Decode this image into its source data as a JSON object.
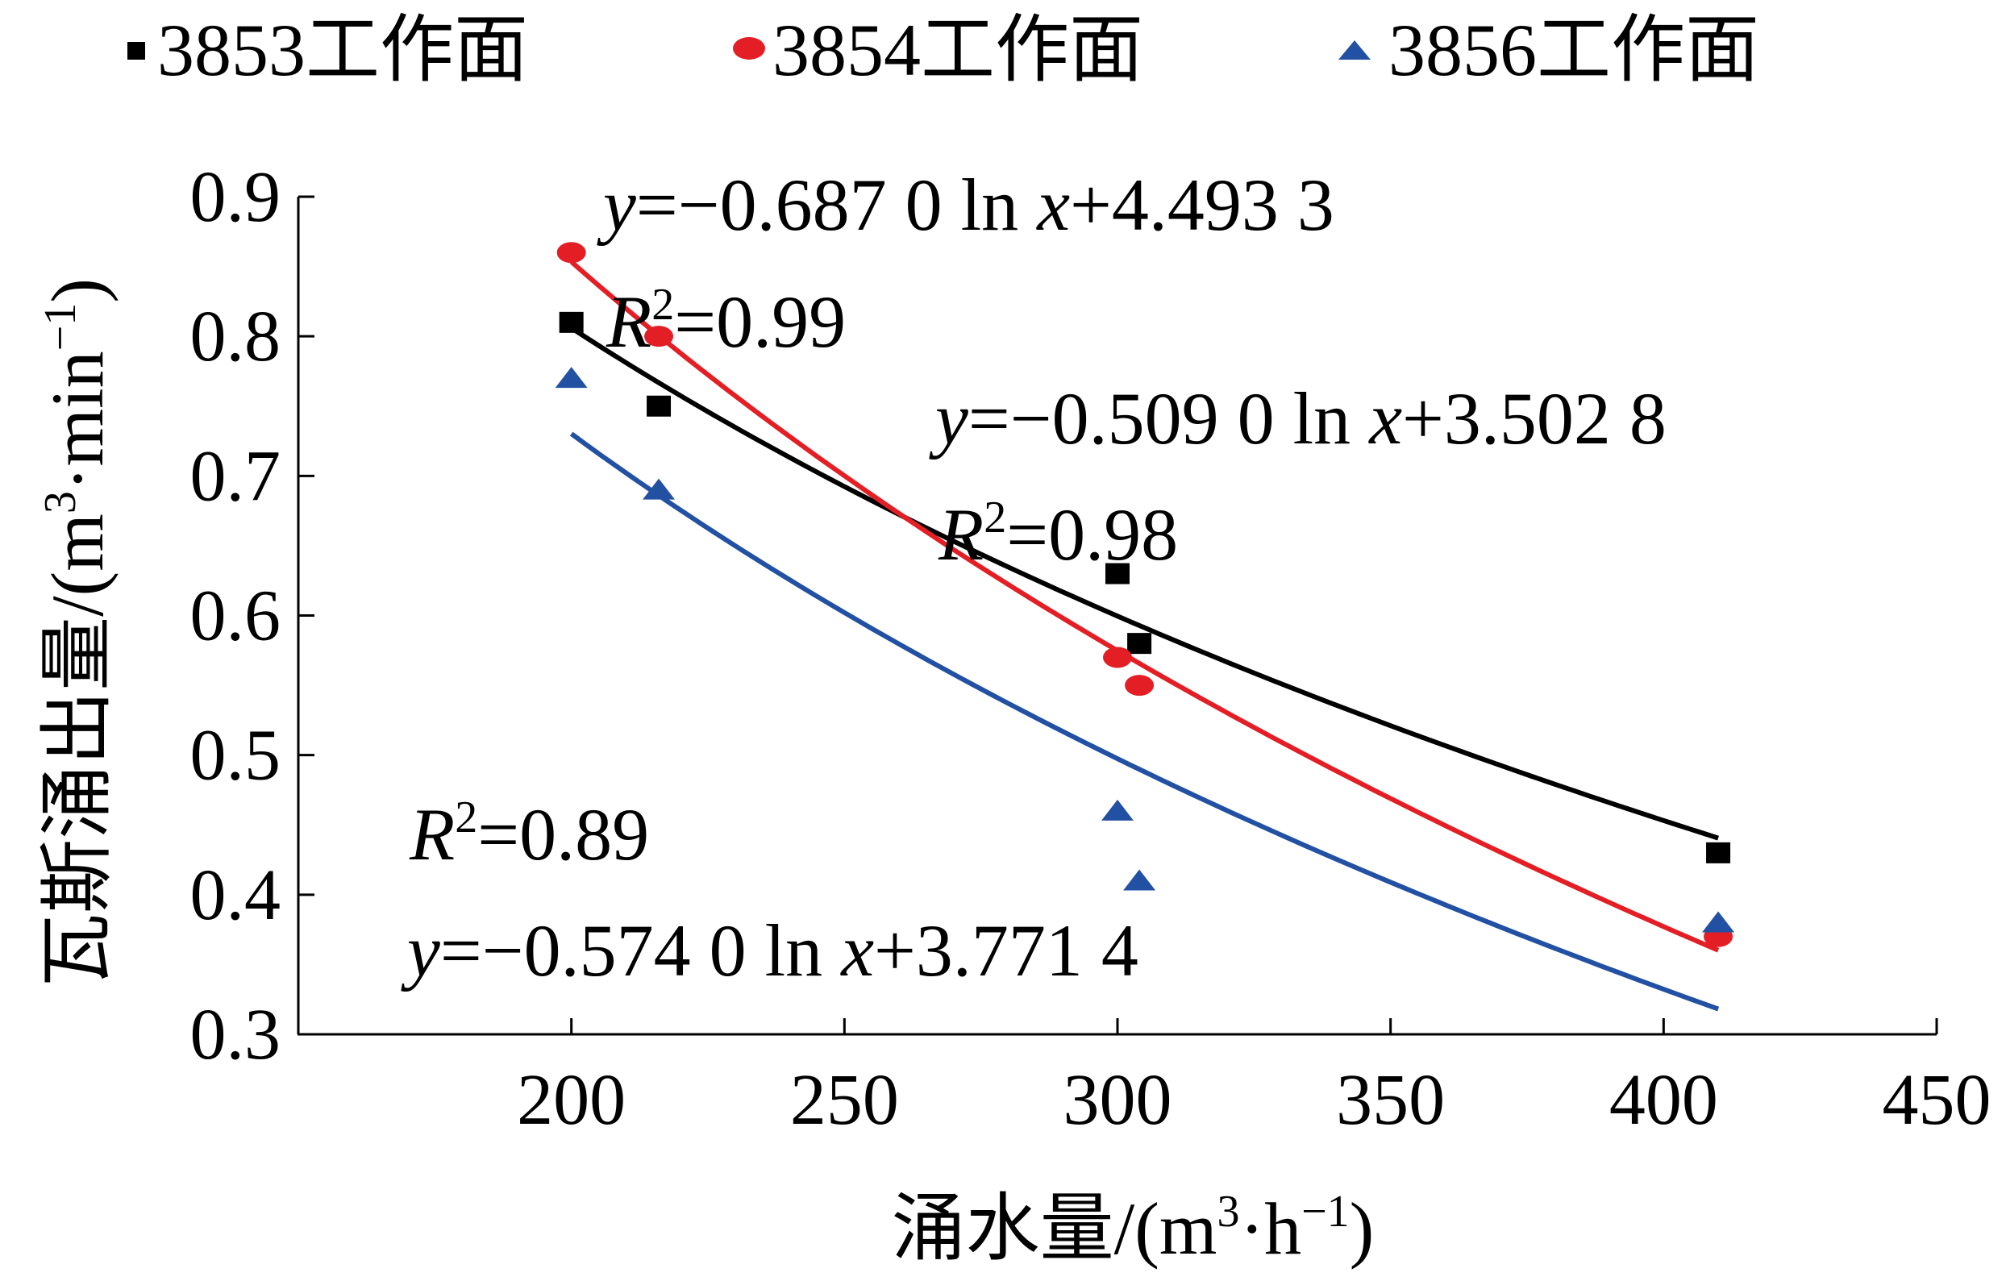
{
  "chart_data": {
    "type": "scatter",
    "title": "",
    "xlabel": "涌水量/(m³·h⁻¹)",
    "ylabel": "瓦斯涌出量/(m³·min⁻¹)",
    "xlim": [
      150,
      450
    ],
    "ylim": [
      0.3,
      0.9
    ],
    "x_ticks": [
      200,
      250,
      300,
      350,
      400,
      450
    ],
    "y_ticks": [
      0.3,
      0.4,
      0.5,
      0.6,
      0.7,
      0.8,
      0.9
    ],
    "x_tick_labels": [
      "200",
      "250",
      "300",
      "350",
      "400",
      "450"
    ],
    "y_tick_labels": [
      "0.3",
      "0.4",
      "0.5",
      "0.6",
      "0.7",
      "0.8",
      "0.9"
    ],
    "grid": false,
    "legend_position": "top",
    "series": [
      {
        "name": "3853工作面",
        "marker": "square",
        "color": "#000000",
        "points": [
          {
            "x": 200,
            "y": 0.81
          },
          {
            "x": 216,
            "y": 0.75
          },
          {
            "x": 300,
            "y": 0.63
          },
          {
            "x": 304,
            "y": 0.58
          },
          {
            "x": 410,
            "y": 0.43
          }
        ],
        "fit": {
          "type": "log",
          "a": -0.509,
          "b": 3.5028,
          "x_range": [
            200,
            410
          ]
        }
      },
      {
        "name": "3854工作面",
        "marker": "circle",
        "color": "#e31e24",
        "points": [
          {
            "x": 200,
            "y": 0.86
          },
          {
            "x": 216,
            "y": 0.8
          },
          {
            "x": 300,
            "y": 0.57
          },
          {
            "x": 304,
            "y": 0.55
          },
          {
            "x": 410,
            "y": 0.37
          }
        ],
        "fit": {
          "type": "log",
          "a": -0.687,
          "b": 4.4933,
          "x_range": [
            200,
            410
          ]
        }
      },
      {
        "name": "3856工作面",
        "marker": "triangle",
        "color": "#2251a3",
        "points": [
          {
            "x": 200,
            "y": 0.77
          },
          {
            "x": 216,
            "y": 0.69
          },
          {
            "x": 300,
            "y": 0.46
          },
          {
            "x": 304,
            "y": 0.41
          },
          {
            "x": 410,
            "y": 0.38
          }
        ],
        "fit": {
          "type": "log",
          "a": -0.574,
          "b": 3.7714,
          "x_range": [
            200,
            410
          ]
        }
      }
    ],
    "annotations": {
      "eq_red": {
        "y_char": "y",
        "eq": "=−0.687 0 ln ",
        "x_char": "x",
        "tail": "+4.493 3"
      },
      "r2_red": {
        "r": "R",
        "sup": "2",
        "val": "=0.99"
      },
      "eq_black": {
        "y_char": "y",
        "eq": "=−0.509 0 ln ",
        "x_char": "x",
        "tail": "+3.502 8"
      },
      "r2_black": {
        "r": "R",
        "sup": "2",
        "val": "=0.98"
      },
      "r2_blue": {
        "r": "R",
        "sup": "2",
        "val": "=0.89"
      },
      "eq_blue": {
        "y_char": "y",
        "eq": "=−0.574 0 ln ",
        "x_char": "x",
        "tail": "+3.771 4"
      }
    },
    "axis_label_parts": {
      "x_cn": "涌水量/(m",
      "x_sup1": "3",
      "x_mid": "·h",
      "x_sup2": "−1",
      "x_end": ")",
      "y_cn": "瓦斯涌出量/(m",
      "y_sup1": "3",
      "y_mid": "·min",
      "y_sup2": "−1",
      "y_end": ")"
    }
  }
}
